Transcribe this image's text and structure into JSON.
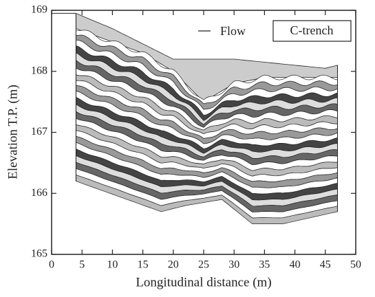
{
  "chart_data": {
    "type": "section",
    "xlabel": "Longitudinal distance (m)",
    "ylabel": "Elevation T.P. (m)",
    "annotations": [
      "Flow",
      "C-trench"
    ],
    "xlim": [
      0,
      50
    ],
    "xticks": [
      0,
      5,
      10,
      15,
      20,
      25,
      30,
      35,
      40,
      45,
      50
    ],
    "ylim": [
      165,
      169
    ],
    "yticks": [
      165,
      166,
      167,
      168,
      169
    ]
  }
}
